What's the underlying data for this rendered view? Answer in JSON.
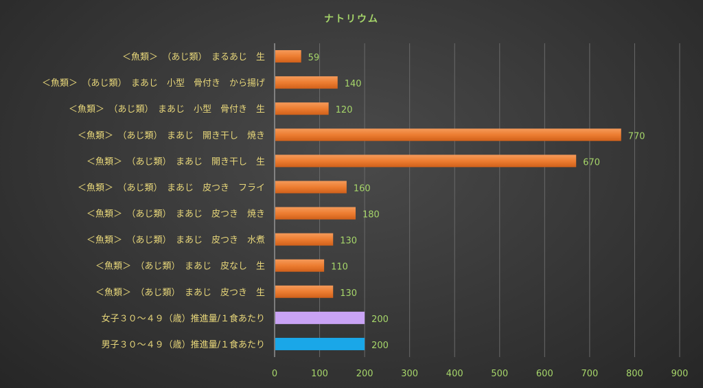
{
  "chart_data": {
    "type": "bar",
    "orientation": "horizontal",
    "title": "ナトリウム",
    "xlim": [
      0,
      900
    ],
    "xticks": [
      0,
      100,
      200,
      300,
      400,
      500,
      600,
      700,
      800,
      900
    ],
    "grid": true,
    "legend": "none",
    "categories": [
      "＜魚類＞　（あじ類）　まるあじ　生",
      "＜魚類＞　（あじ類）　まあじ　小型　骨付き　から揚げ",
      "＜魚類＞　（あじ類）　まあじ　小型　骨付き　生",
      "＜魚類＞　（あじ類）　まあじ　開き干し　焼き",
      "＜魚類＞　（あじ類）　まあじ　開き干し　生",
      "＜魚類＞　（あじ類）　まあじ　皮つき　フライ",
      "＜魚類＞　（あじ類）　まあじ　皮つき　焼き",
      "＜魚類＞　（あじ類）　まあじ　皮つき　水煮",
      "＜魚類＞　（あじ類）　まあじ　皮なし　生",
      "＜魚類＞　（あじ類）　まあじ　皮つき　生",
      "女子３０～４９（歳）推進量/１食あたり",
      "男子３０～４９（歳）推進量/１食あたり"
    ],
    "values": [
      59,
      140,
      120,
      770,
      670,
      160,
      180,
      130,
      110,
      130,
      200,
      200
    ],
    "bar_colors": [
      "#ed7d31",
      "#ed7d31",
      "#ed7d31",
      "#ed7d31",
      "#ed7d31",
      "#ed7d31",
      "#ed7d31",
      "#ed7d31",
      "#ed7d31",
      "#ed7d31",
      "#c9a3f5",
      "#1aa7e8"
    ]
  }
}
